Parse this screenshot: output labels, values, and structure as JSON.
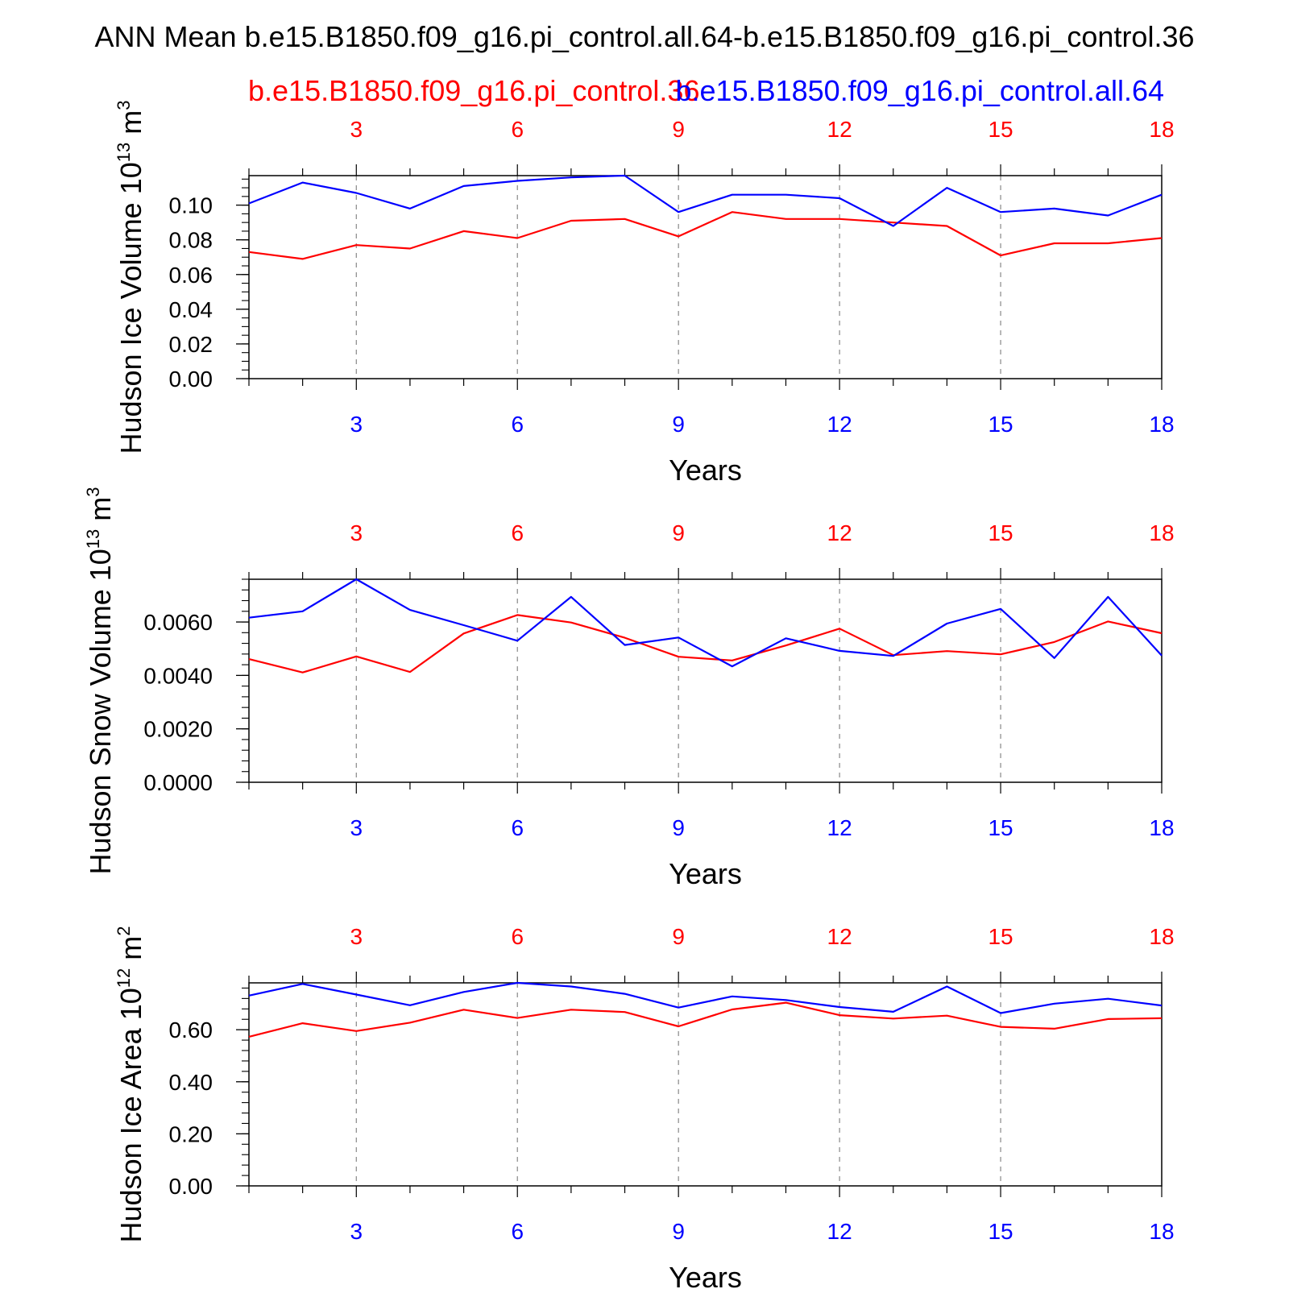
{
  "title": "ANN Mean b.e15.B1850.f09_g16.pi_control.all.64-b.e15.B1850.f09_g16.pi_control.36",
  "legend": {
    "red": "b.e15.B1850.f09_g16.pi_control.36",
    "blue": "b.e15.B1850.f09_g16.pi_control.all.64"
  },
  "colors": {
    "red": "#ff0000",
    "blue": "#0000ff",
    "axis": "#000000",
    "grid": "#888888"
  },
  "xlabel": "Years",
  "chart_data": [
    {
      "type": "line",
      "ylabel": "Hudson Ice Volume 10^13 m^3",
      "ylabel_base": "Hudson Ice Volume 10",
      "ylabel_exp": "13",
      "ylabel_unit": "m",
      "ylabel_unit_exp": "3",
      "xlabel": "Years",
      "xlim": [
        1,
        18
      ],
      "ylim": [
        0,
        0.117
      ],
      "yticks": [
        0,
        0.02,
        0.04,
        0.06,
        0.08,
        0.1
      ],
      "ytick_labels": [
        "0.00",
        "0.02",
        "0.04",
        "0.06",
        "0.08",
        "0.10"
      ],
      "yminor": 0.005,
      "xticks": [
        3,
        6,
        9,
        12,
        15,
        18
      ],
      "xtick_labels": [
        "3",
        "6",
        "9",
        "12",
        "15",
        "18"
      ],
      "grid": "vertical dashed at major x ticks",
      "x": [
        1,
        2,
        3,
        4,
        5,
        6,
        7,
        8,
        9,
        10,
        11,
        12,
        13,
        14,
        15,
        16,
        17,
        18
      ],
      "series": [
        {
          "name": "b.e15.B1850.f09_g16.pi_control.36",
          "color": "red",
          "values": [
            0.073,
            0.069,
            0.077,
            0.075,
            0.085,
            0.081,
            0.091,
            0.092,
            0.082,
            0.096,
            0.092,
            0.092,
            0.09,
            0.088,
            0.071,
            0.078,
            0.078,
            0.081
          ]
        },
        {
          "name": "b.e15.B1850.f09_g16.pi_control.all.64",
          "color": "blue",
          "values": [
            0.101,
            0.113,
            0.107,
            0.098,
            0.111,
            0.114,
            0.116,
            0.117,
            0.096,
            0.106,
            0.106,
            0.104,
            0.088,
            0.11,
            0.096,
            0.098,
            0.094,
            0.106
          ]
        }
      ]
    },
    {
      "type": "line",
      "ylabel": "Hudson Snow Volume 10^13 m^3",
      "ylabel_base": "Hudson Snow Volume 10",
      "ylabel_exp": "13",
      "ylabel_unit": "m",
      "ylabel_unit_exp": "3",
      "xlabel": "Years",
      "xlim": [
        1,
        18
      ],
      "ylim": [
        0,
        0.0076
      ],
      "yticks": [
        0,
        0.002,
        0.004,
        0.006
      ],
      "ytick_labels": [
        "0.0000",
        "0.0020",
        "0.0040",
        "0.0060"
      ],
      "yminor": 0.0004,
      "xticks": [
        3,
        6,
        9,
        12,
        15,
        18
      ],
      "xtick_labels": [
        "3",
        "6",
        "9",
        "12",
        "15",
        "18"
      ],
      "grid": "vertical dashed at major x ticks",
      "x": [
        1,
        2,
        3,
        4,
        5,
        6,
        7,
        8,
        9,
        10,
        11,
        12,
        13,
        14,
        15,
        16,
        17,
        18
      ],
      "series": [
        {
          "name": "b.e15.B1850.f09_g16.pi_control.36",
          "color": "red",
          "values": [
            0.00461,
            0.00411,
            0.00471,
            0.00413,
            0.00557,
            0.00626,
            0.00598,
            0.00541,
            0.0047,
            0.00456,
            0.00512,
            0.00575,
            0.00476,
            0.00491,
            0.00479,
            0.00525,
            0.00602,
            0.00558
          ]
        },
        {
          "name": "b.e15.B1850.f09_g16.pi_control.all.64",
          "color": "blue",
          "values": [
            0.00616,
            0.0064,
            0.0076,
            0.00645,
            0.00588,
            0.0053,
            0.00694,
            0.00514,
            0.00542,
            0.00434,
            0.00539,
            0.00492,
            0.00473,
            0.00594,
            0.00649,
            0.00465,
            0.00694,
            0.00474
          ]
        }
      ]
    },
    {
      "type": "line",
      "ylabel": "Hudson Ice Area 10^12 m^2",
      "ylabel_base": "Hudson Ice Area 10",
      "ylabel_exp": "12",
      "ylabel_unit": "m",
      "ylabel_unit_exp": "2",
      "xlabel": "Years",
      "xlim": [
        1,
        18
      ],
      "ylim": [
        0,
        0.78
      ],
      "yticks": [
        0,
        0.2,
        0.4,
        0.6
      ],
      "ytick_labels": [
        "0.00",
        "0.20",
        "0.40",
        "0.60"
      ],
      "yminor": 0.04,
      "xticks": [
        3,
        6,
        9,
        12,
        15,
        18
      ],
      "xtick_labels": [
        "3",
        "6",
        "9",
        "12",
        "15",
        "18"
      ],
      "grid": "vertical dashed at major x ticks",
      "x": [
        1,
        2,
        3,
        4,
        5,
        6,
        7,
        8,
        9,
        10,
        11,
        12,
        13,
        14,
        15,
        16,
        17,
        18
      ],
      "series": [
        {
          "name": "b.e15.B1850.f09_g16.pi_control.36",
          "color": "red",
          "values": [
            0.573,
            0.625,
            0.595,
            0.627,
            0.677,
            0.645,
            0.677,
            0.668,
            0.613,
            0.678,
            0.704,
            0.656,
            0.643,
            0.654,
            0.611,
            0.604,
            0.641,
            0.644
          ]
        },
        {
          "name": "b.e15.B1850.f09_g16.pi_control.all.64",
          "color": "blue",
          "values": [
            0.731,
            0.776,
            0.735,
            0.694,
            0.745,
            0.78,
            0.766,
            0.738,
            0.685,
            0.728,
            0.714,
            0.687,
            0.669,
            0.766,
            0.664,
            0.7,
            0.719,
            0.693
          ]
        }
      ]
    }
  ]
}
